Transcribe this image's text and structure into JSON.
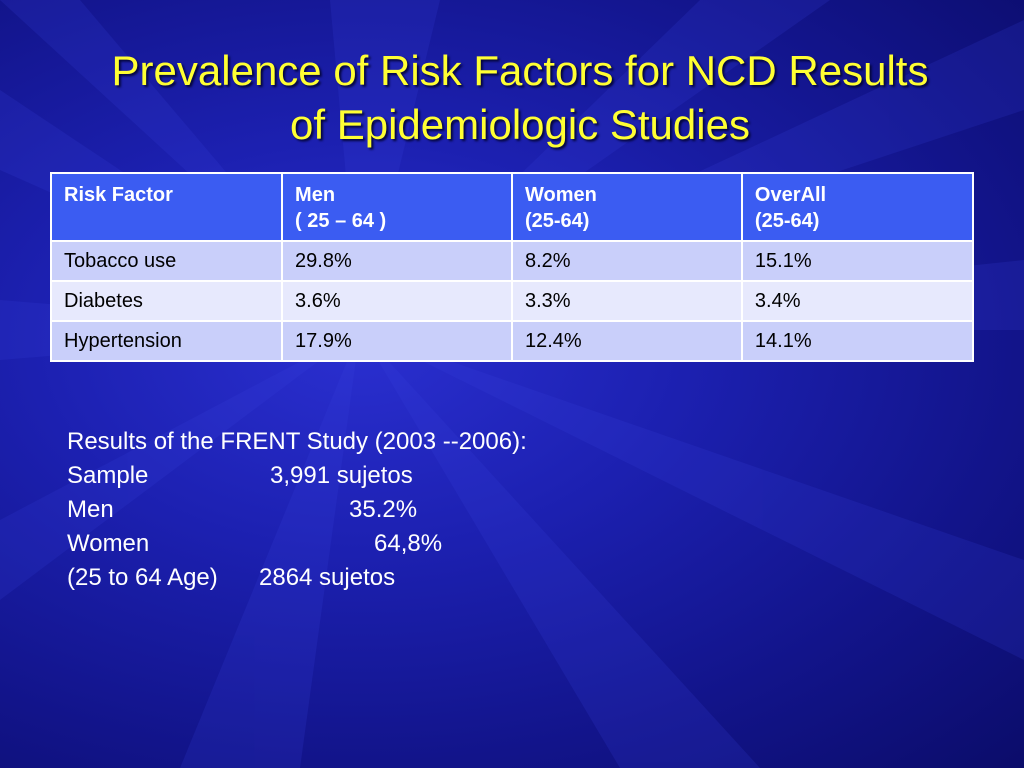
{
  "slide": {
    "title_line1": "Prevalence of Risk Factors for NCD Results",
    "title_line2": "of Epidemiologic Studies"
  },
  "table": {
    "headers": [
      {
        "line1": "Risk Factor",
        "line2": ""
      },
      {
        "line1": "Men",
        "line2": "( 25 – 64 )"
      },
      {
        "line1": "Women",
        "line2": "(25-64)"
      },
      {
        "line1": "OverAll",
        "line2": "(25-64)"
      }
    ],
    "rows": [
      [
        "Tobacco use",
        "29.8%",
        "8.2%",
        "15.1%"
      ],
      [
        "Diabetes",
        "3.6%",
        "3.3%",
        "3.4%"
      ],
      [
        "Hypertension",
        "17.9%",
        "12.4%",
        "14.1%"
      ]
    ]
  },
  "study": {
    "heading": "Results of the FRENT Study (2003 --2006):",
    "sample_label": "Sample",
    "sample_value": "3,991 sujetos",
    "men_label": "Men",
    "men_value": "35.2%",
    "women_label": "Women",
    "women_value": "64,8%",
    "age_label": "(25 to 64 Age)",
    "age_value": "2864 sujetos"
  }
}
